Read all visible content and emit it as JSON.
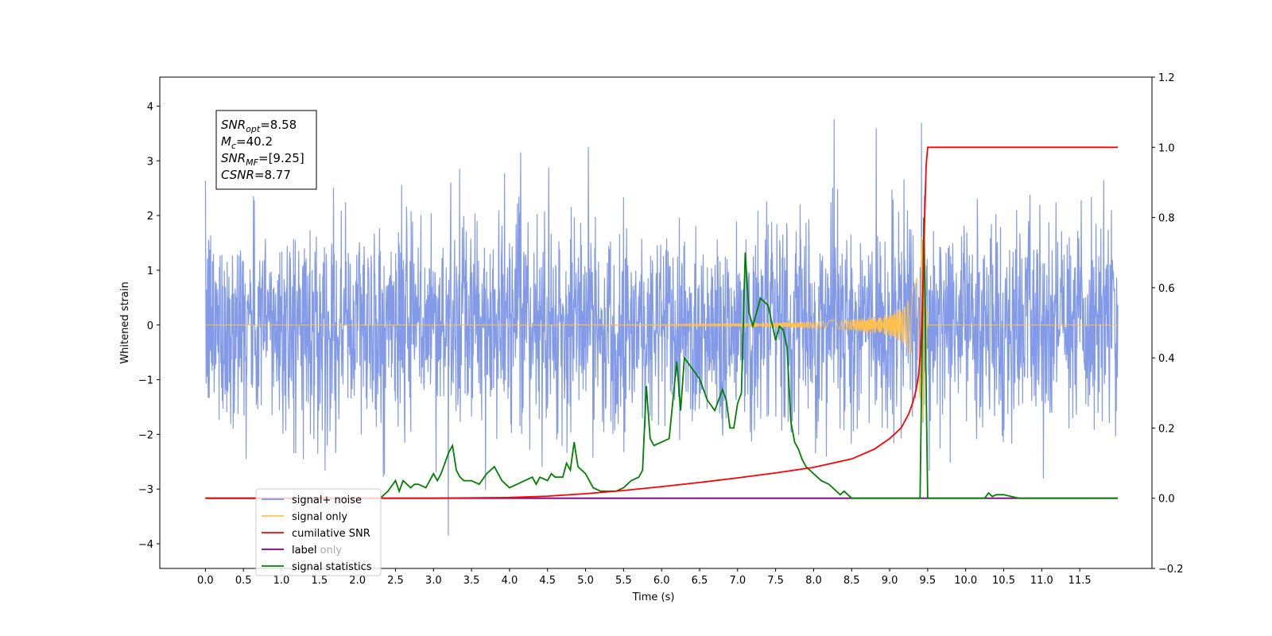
{
  "chart_data": {
    "type": "line",
    "xlabel": "Time (s)",
    "ylabel": "Whitened strain",
    "xlim": [
      -0.6,
      12.45
    ],
    "ylim": [
      -4.45,
      4.53
    ],
    "y2lim": [
      -0.2,
      1.2
    ],
    "x_ticks": [
      0.0,
      0.5,
      1.0,
      1.5,
      2.0,
      2.5,
      3.0,
      3.5,
      4.0,
      4.5,
      5.0,
      5.5,
      6.0,
      6.5,
      7.0,
      7.5,
      8.0,
      8.5,
      9.0,
      9.5,
      10.0,
      10.5,
      11.0,
      11.5
    ],
    "x_tick_labels": [
      "0.0",
      "0.5",
      "1.0",
      "1.5",
      "2.0",
      "2.5",
      "3.0",
      "3.5",
      "4.0",
      "4.5",
      "5.0",
      "5.5",
      "6.0",
      "6.5",
      "7.0",
      "7.5",
      "8.0",
      "8.5",
      "9.0",
      "9.5",
      "10.0",
      "10.5",
      "11.0",
      "11.5"
    ],
    "y_ticks": [
      4,
      3,
      2,
      1,
      0,
      -1,
      -2,
      -3,
      -4
    ],
    "y_tick_labels": [
      "4",
      "3",
      "2",
      "1",
      "0",
      "−1",
      "−2",
      "−3",
      "−4"
    ],
    "y2_ticks": [
      1.2,
      1.0,
      0.8,
      0.6,
      0.4,
      0.2,
      0.0,
      -0.2
    ],
    "y2_tick_labels": [
      "1.2",
      "1.0",
      "0.8",
      "0.6",
      "0.4",
      "0.2",
      "0.0",
      "−0.2"
    ],
    "noise": {
      "x_start": 0.0,
      "x_end": 12.0,
      "typical_range": [
        -2.2,
        2.2
      ],
      "max": 4.1,
      "min": -3.85
    },
    "annotation": {
      "lines": [
        {
          "sym": "SNR",
          "sub": "opt",
          "val": "=8.58"
        },
        {
          "sym": "M",
          "sub": "c",
          "val": "=40.2"
        },
        {
          "sym": "SNR",
          "sub": "MF",
          "val": "=[9.25]"
        },
        {
          "sym": "CSNR",
          "sub": "",
          "val": "=8.77"
        }
      ]
    },
    "legend": {
      "position": "lower-left",
      "entries": [
        {
          "label": "signal+ noise",
          "color": "#7b95e6"
        },
        {
          "label": "signal only",
          "color": "#ffc04d"
        },
        {
          "label": "cumilative SNR",
          "color": "#ff0000"
        },
        {
          "label": "label",
          "color": "#800080"
        },
        {
          "label": "signal statistics",
          "color": "#008000"
        }
      ],
      "hidden_label": "label only"
    },
    "series": [
      {
        "name": "signal+ noise",
        "axis": "left",
        "color": "#7b95e6",
        "x": [],
        "y": []
      },
      {
        "name": "signal only",
        "axis": "left",
        "color": "#ffc04d",
        "x": [
          0,
          6.0,
          7.0,
          8.0,
          8.5,
          9.0,
          9.2,
          9.35,
          9.45,
          9.5,
          12.0
        ],
        "y": [
          0,
          0.01,
          0.03,
          0.06,
          0.1,
          0.2,
          0.35,
          0.8,
          2.0,
          0,
          0
        ]
      },
      {
        "name": "cumilative SNR",
        "axis": "right",
        "color": "#ff0000",
        "x": [
          0,
          2.3,
          3.0,
          4.0,
          4.5,
          5.0,
          5.5,
          6.0,
          6.5,
          7.0,
          7.5,
          8.0,
          8.5,
          8.8,
          9.0,
          9.15,
          9.25,
          9.3,
          9.35,
          9.38,
          9.4,
          9.42,
          9.44,
          9.46,
          9.48,
          9.5,
          12.0
        ],
        "y": [
          0,
          0,
          0.0,
          0.002,
          0.006,
          0.013,
          0.022,
          0.033,
          0.045,
          0.058,
          0.072,
          0.088,
          0.112,
          0.14,
          0.17,
          0.2,
          0.24,
          0.27,
          0.31,
          0.35,
          0.4,
          0.48,
          0.6,
          0.8,
          0.95,
          1.0,
          1.0
        ]
      },
      {
        "name": "label",
        "axis": "right",
        "color": "#800080",
        "x": [
          0,
          12.0
        ],
        "y": [
          0,
          0
        ]
      },
      {
        "name": "signal statistics",
        "axis": "right",
        "color": "#008000",
        "x": [
          0,
          2.3,
          2.4,
          2.5,
          2.55,
          2.6,
          2.7,
          2.75,
          2.8,
          2.9,
          3.0,
          3.05,
          3.1,
          3.2,
          3.25,
          3.3,
          3.35,
          3.4,
          3.5,
          3.6,
          3.7,
          3.8,
          3.9,
          4.0,
          4.1,
          4.2,
          4.3,
          4.35,
          4.4,
          4.5,
          4.55,
          4.6,
          4.7,
          4.75,
          4.8,
          4.85,
          4.9,
          5.0,
          5.05,
          5.1,
          5.2,
          5.3,
          5.4,
          5.5,
          5.6,
          5.7,
          5.75,
          5.8,
          5.85,
          5.9,
          6.0,
          6.1,
          6.2,
          6.25,
          6.3,
          6.4,
          6.5,
          6.6,
          6.7,
          6.8,
          6.85,
          6.9,
          6.95,
          7.0,
          7.05,
          7.1,
          7.15,
          7.2,
          7.25,
          7.3,
          7.4,
          7.5,
          7.55,
          7.6,
          7.65,
          7.7,
          7.75,
          7.8,
          7.85,
          7.9,
          8.0,
          8.1,
          8.2,
          8.3,
          8.35,
          8.4,
          8.5,
          8.6,
          9.0,
          9.3,
          9.35,
          9.4,
          9.45,
          9.5,
          9.55,
          9.6,
          10.0,
          10.25,
          10.3,
          10.35,
          10.4,
          10.5,
          10.6,
          10.7,
          10.8,
          12.0
        ],
        "y": [
          0,
          0,
          0.02,
          0.05,
          0.02,
          0.05,
          0.03,
          0.04,
          0.04,
          0.03,
          0.07,
          0.05,
          0.07,
          0.13,
          0.15,
          0.08,
          0.06,
          0.05,
          0.05,
          0.04,
          0.07,
          0.09,
          0.05,
          0.03,
          0.04,
          0.05,
          0.06,
          0.04,
          0.06,
          0.05,
          0.07,
          0.06,
          0.06,
          0.1,
          0.08,
          0.16,
          0.09,
          0.07,
          0.05,
          0.03,
          0.02,
          0.02,
          0.02,
          0.03,
          0.05,
          0.06,
          0.08,
          0.32,
          0.17,
          0.15,
          0.16,
          0.17,
          0.39,
          0.25,
          0.4,
          0.37,
          0.34,
          0.28,
          0.25,
          0.31,
          0.28,
          0.2,
          0.2,
          0.27,
          0.3,
          0.7,
          0.53,
          0.49,
          0.53,
          0.57,
          0.55,
          0.45,
          0.49,
          0.48,
          0.43,
          0.22,
          0.16,
          0.14,
          0.11,
          0.09,
          0.07,
          0.05,
          0.04,
          0.02,
          0.01,
          0.02,
          0.0,
          0.0,
          0.0,
          0.0,
          0.0,
          0.0,
          0.8,
          0.0,
          0.0,
          0.0,
          0.0,
          0.0,
          0.015,
          0.005,
          0.01,
          0.01,
          0.005,
          0.0,
          0.0,
          0.0
        ]
      }
    ]
  }
}
